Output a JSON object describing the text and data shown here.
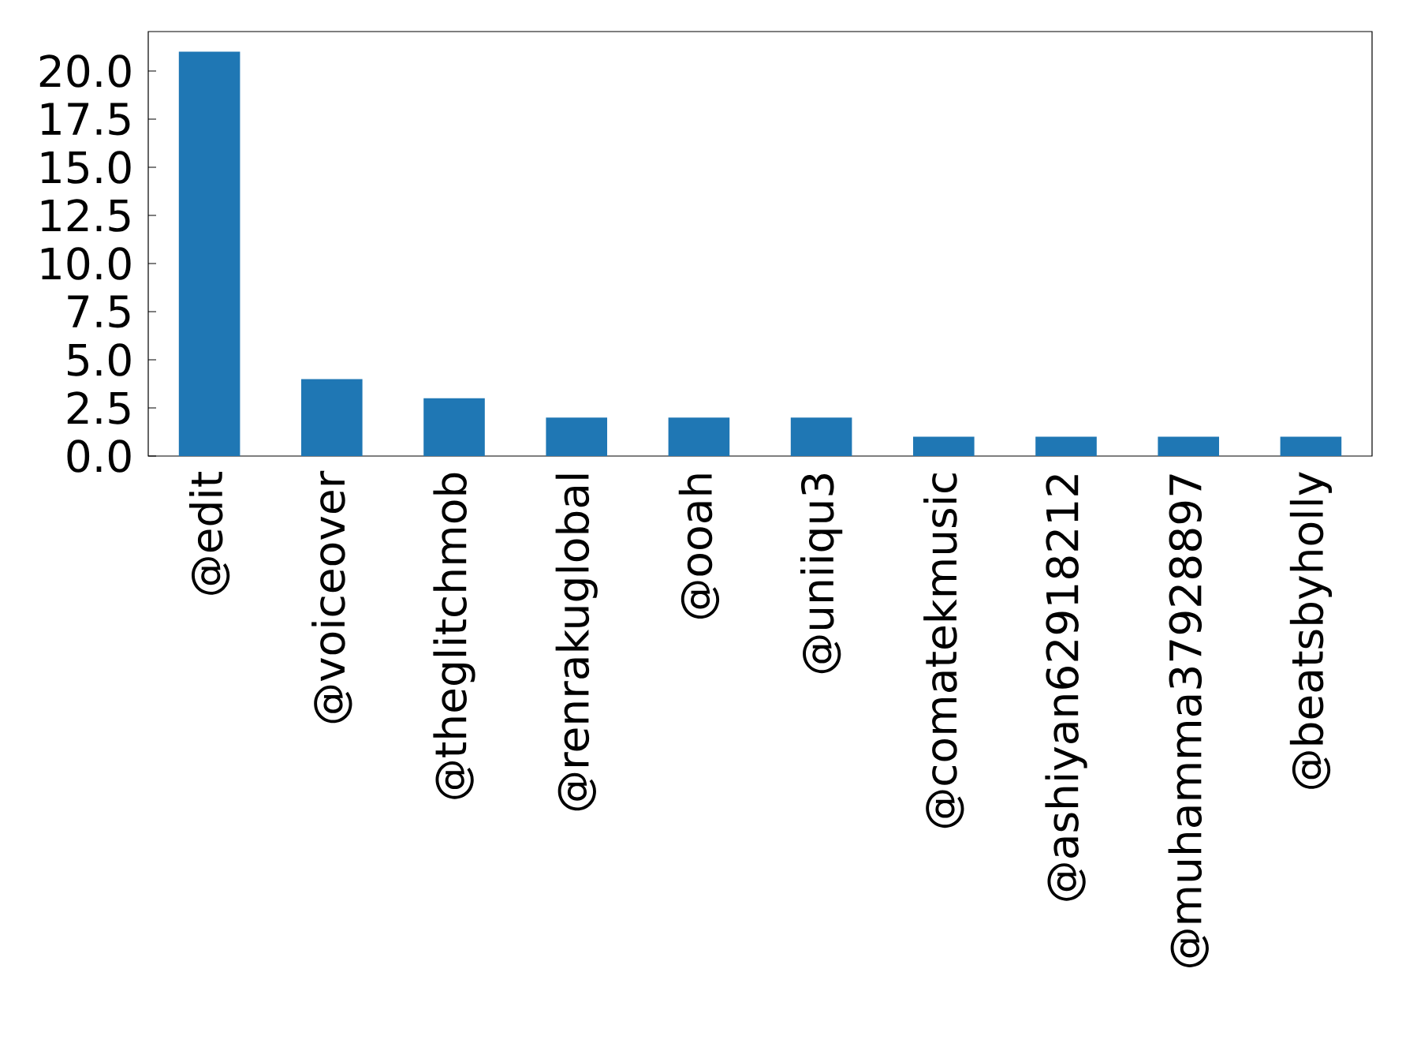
{
  "chart_data": {
    "type": "bar",
    "categories": [
      "@edit",
      "@voiceover",
      "@theglitchmob",
      "@renrakuglobal",
      "@ooah",
      "@uniiqu3",
      "@comatekmusic",
      "@ashiyan62918212",
      "@muhamma37928897",
      "@beatsbyholly"
    ],
    "values": [
      21,
      4,
      3,
      2,
      2,
      2,
      1,
      1,
      1,
      1
    ],
    "color": "#1f77b4",
    "ylim": [
      0,
      22.05
    ],
    "yticks": [
      {
        "value": 0,
        "label": "0.0"
      },
      {
        "value": 2.5,
        "label": "2.5"
      },
      {
        "value": 5,
        "label": "5.0"
      },
      {
        "value": 7.5,
        "label": "7.5"
      },
      {
        "value": 10,
        "label": "10.0"
      },
      {
        "value": 12.5,
        "label": "12.5"
      },
      {
        "value": 15,
        "label": "15.0"
      },
      {
        "value": 17.5,
        "label": "17.5"
      },
      {
        "value": 20,
        "label": "20.0"
      }
    ],
    "grid": false
  }
}
